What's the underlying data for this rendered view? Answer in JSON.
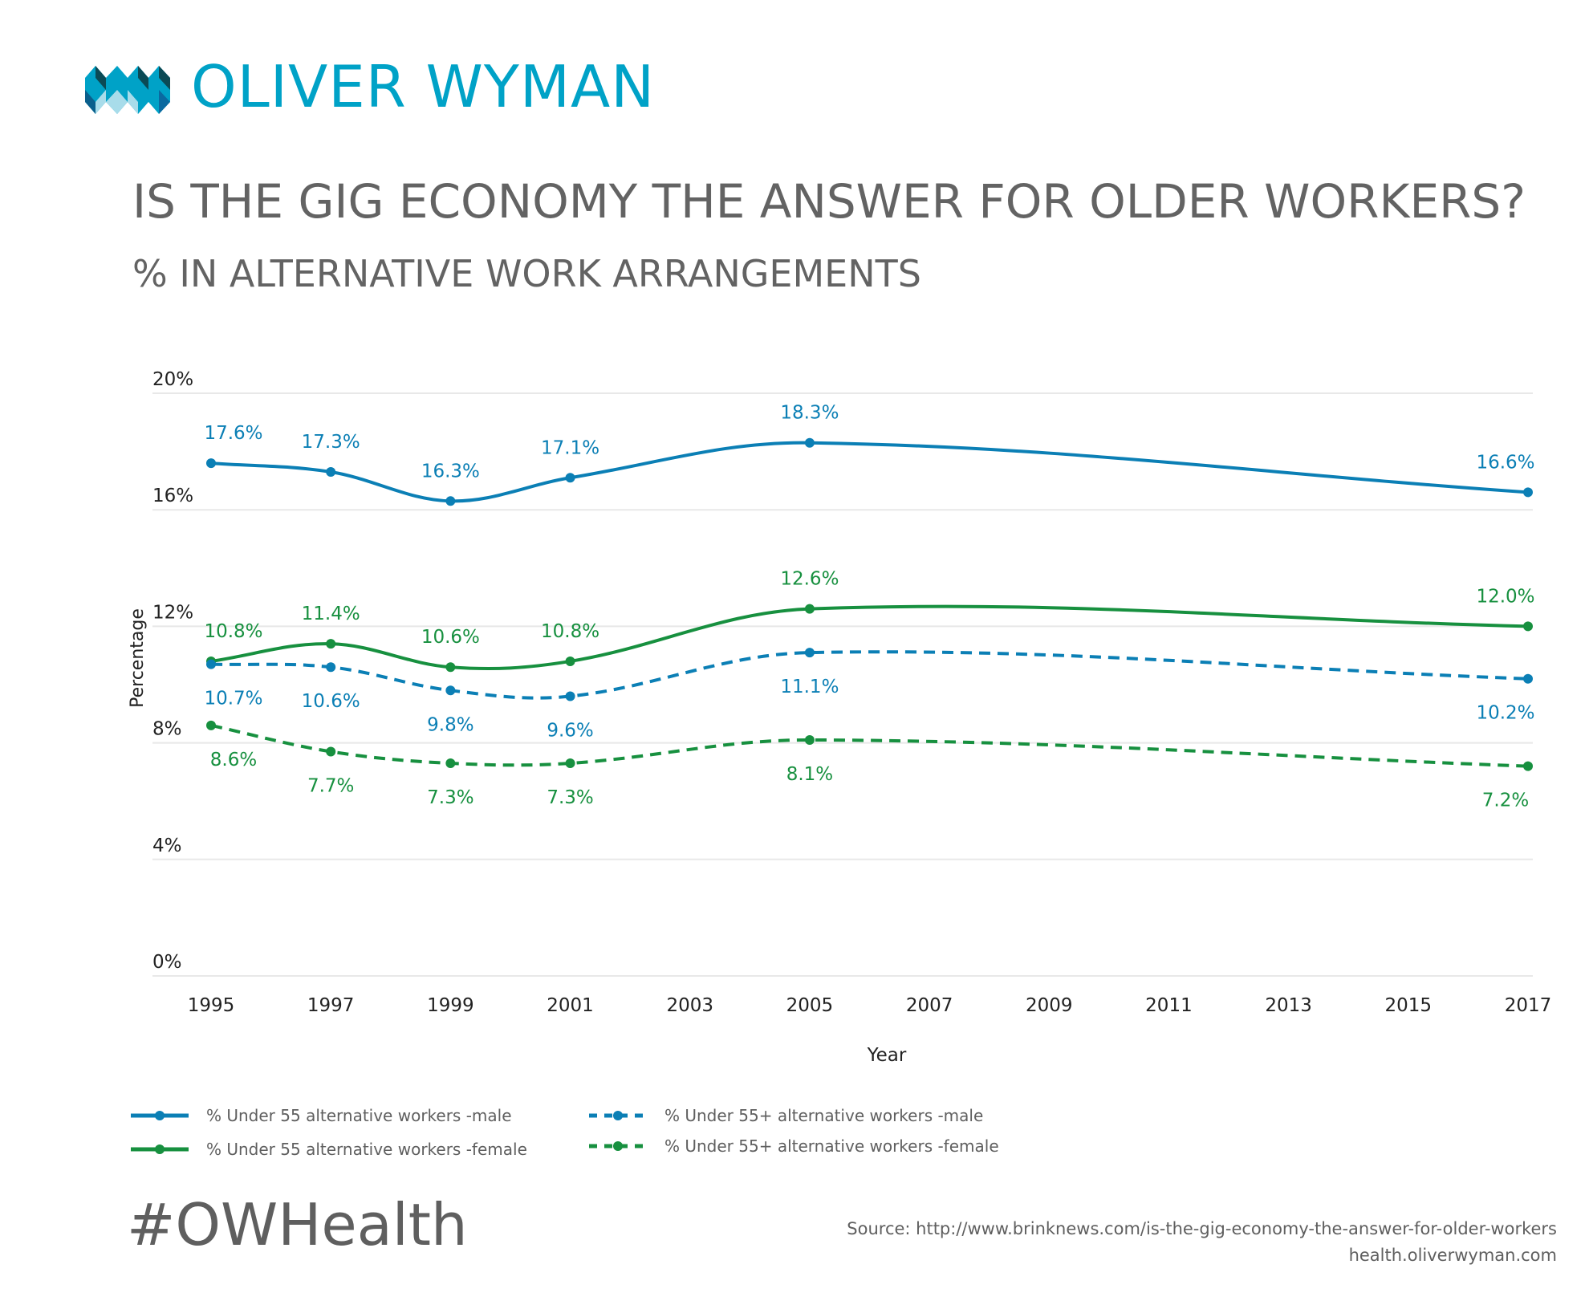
{
  "brand": {
    "logo_text": "OLIVER WYMAN",
    "color": "#00a2c7"
  },
  "header": {
    "title": "IS THE GIG ECONOMY THE ANSWER FOR OLDER WORKERS?",
    "subtitle": "% IN ALTERNATIVE WORK ARRANGEMENTS"
  },
  "chart_data": {
    "type": "line",
    "xlabel": "Year",
    "ylabel": "Percentage",
    "xlim": [
      1995,
      2017
    ],
    "ylim": [
      0,
      20
    ],
    "x_ticks": [
      "1995",
      "1997",
      "1999",
      "2001",
      "2003",
      "2005",
      "2007",
      "2009",
      "2011",
      "2013",
      "2015",
      "2017"
    ],
    "y_ticks": [
      "0%",
      "4%",
      "8%",
      "12%",
      "16%",
      "20%"
    ],
    "grid": "horizontal",
    "legend_position": "bottom",
    "x": [
      1995,
      1997,
      1999,
      2001,
      2005,
      2017
    ],
    "series": [
      {
        "name": "% Under 55 alternative workers -male",
        "color": "#0b7fb5",
        "dash": false,
        "label_pos": "above",
        "values": [
          17.6,
          17.3,
          16.3,
          17.1,
          18.3,
          16.6
        ],
        "labels": [
          "17.6%",
          "17.3%",
          "16.3%",
          "17.1%",
          "18.3%",
          "16.6%"
        ]
      },
      {
        "name": "% Under 55 alternative workers -female",
        "color": "#17903f",
        "dash": false,
        "label_pos": "above",
        "values": [
          10.8,
          11.4,
          10.6,
          10.8,
          12.6,
          12.0
        ],
        "labels": [
          "10.8%",
          "11.4%",
          "10.6%",
          "10.8%",
          "12.6%",
          "12.0%"
        ]
      },
      {
        "name": "% Under 55+ alternative workers -male",
        "color": "#0b7fb5",
        "dash": true,
        "label_pos": "below",
        "values": [
          10.7,
          10.6,
          9.8,
          9.6,
          11.1,
          10.2
        ],
        "labels": [
          "10.7%",
          "10.6%",
          "9.8%",
          "9.6%",
          "11.1%",
          "10.2%"
        ]
      },
      {
        "name": "% Under 55+ alternative workers -female",
        "color": "#17903f",
        "dash": true,
        "label_pos": "below",
        "values": [
          8.6,
          7.7,
          7.3,
          7.3,
          8.1,
          7.2
        ],
        "labels": [
          "8.6%",
          "7.7%",
          "7.3%",
          "7.3%",
          "8.1%",
          "7.2%"
        ]
      }
    ]
  },
  "footer": {
    "hashtag": "#OWHealth",
    "source": "Source: http://www.brinknews.com/is-the-gig-economy-the-answer-for-older-workers",
    "site": "health.oliverwyman.com"
  }
}
